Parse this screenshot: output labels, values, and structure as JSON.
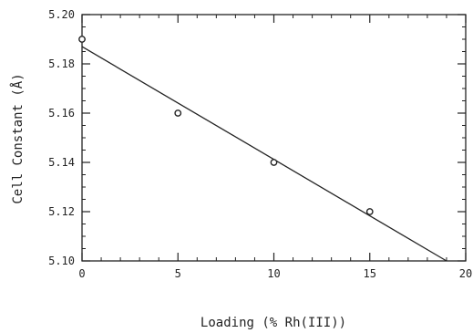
{
  "chart_data": {
    "type": "scatter",
    "title": "",
    "xlabel": "Loading (% Rh(III))",
    "ylabel": "Cell Constant (Å)",
    "xlim": [
      0,
      20
    ],
    "ylim": [
      5.1,
      5.2
    ],
    "x_ticks": [
      0,
      5,
      10,
      15,
      20
    ],
    "y_ticks": [
      5.1,
      5.12,
      5.14,
      5.16,
      5.18,
      5.2
    ],
    "x_tick_labels": [
      "0",
      "5",
      "10",
      "15",
      "20"
    ],
    "y_tick_labels": [
      "5.10",
      "5.12",
      "5.14",
      "5.16",
      "5.18",
      "5.20"
    ],
    "grid": false,
    "series": [
      {
        "values": [
          {
            "x": 0,
            "y": 5.19
          },
          {
            "x": 5,
            "y": 5.16
          },
          {
            "x": 10,
            "y": 5.14
          },
          {
            "x": 15,
            "y": 5.12
          }
        ]
      }
    ],
    "fit_line": {
      "x": [
        0,
        19
      ],
      "y": [
        5.187,
        5.1
      ]
    },
    "colors": {
      "marks": "#222222",
      "background": "#ffffff"
    }
  }
}
